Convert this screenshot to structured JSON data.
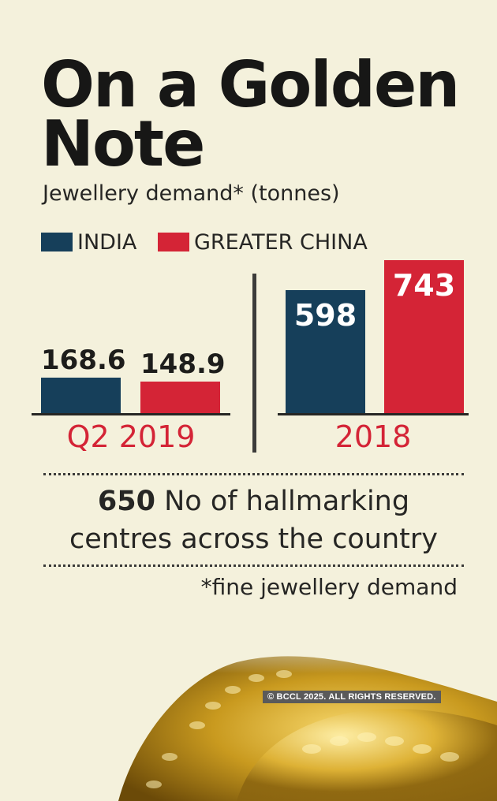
{
  "title_line1": "On a Golden",
  "title_line2": "Note",
  "subtitle": "Jewellery demand* (tonnes)",
  "legend": [
    {
      "label": "INDIA",
      "color": "#163f5a"
    },
    {
      "label": "GREATER CHINA",
      "color": "#d42436"
    }
  ],
  "chart_data": {
    "type": "bar",
    "title": "On a Golden Note",
    "subtitle": "Jewellery demand* (tonnes)",
    "categories": [
      "Q2 2019",
      "2018"
    ],
    "series": [
      {
        "name": "INDIA",
        "color": "#163f5a",
        "values": [
          168.6,
          598
        ],
        "labels": [
          "168.6",
          "598"
        ]
      },
      {
        "name": "GREATER CHINA",
        "color": "#d42436",
        "values": [
          148.9,
          743
        ],
        "labels": [
          "148.9",
          "743"
        ]
      }
    ],
    "legend_position": "top-left",
    "grid": false
  },
  "stat": {
    "number": "650",
    "text": " No of hallmarking centres across the country"
  },
  "footnote": "*fine jewellery demand",
  "copyright": "© BCCL 2025. ALL RIGHTS RESERVED."
}
